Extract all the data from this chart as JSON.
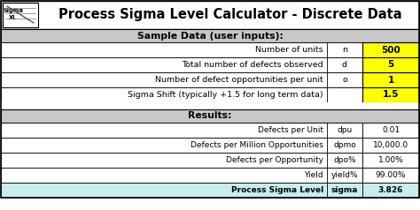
{
  "title": "Process Sigma Level Calculator - Discrete Data",
  "section1_header": "Sample Data (user inputs):",
  "section2_header": "Results:",
  "input_rows": [
    {
      "label": "Number of units",
      "symbol": "n",
      "value": "500"
    },
    {
      "label": "Total number of defects observed",
      "symbol": "d",
      "value": "5"
    },
    {
      "label": "Number of defect opportunities per unit",
      "symbol": "o",
      "value": "1"
    },
    {
      "label": "Sigma Shift (typically +1.5 for long term data)",
      "symbol": "",
      "value": "1.5"
    }
  ],
  "result_rows": [
    {
      "label": "Defects per Unit",
      "symbol": "dpu",
      "value": "0.01"
    },
    {
      "label": "Defects per Million Opportunities",
      "symbol": "dpmo",
      "value": "10,000.0"
    },
    {
      "label": "Defects per Opportunity",
      "symbol": "dpo%",
      "value": "1.00%"
    },
    {
      "label": "Yield",
      "symbol": "yield%",
      "value": "99.00%"
    },
    {
      "label": "Process Sigma Level",
      "symbol": "sigma",
      "value": "3.826"
    }
  ],
  "color_gray": "#C8C8C8",
  "color_yellow": "#FFFF00",
  "color_light_cyan": "#C6F0F0",
  "color_white": "#FFFFFF",
  "color_border": "#000000",
  "result_row_colors": [
    "#FFFFFF",
    "#FFFFFF",
    "#FFFFFF",
    "#FFFFFF",
    "#C8EDED"
  ]
}
